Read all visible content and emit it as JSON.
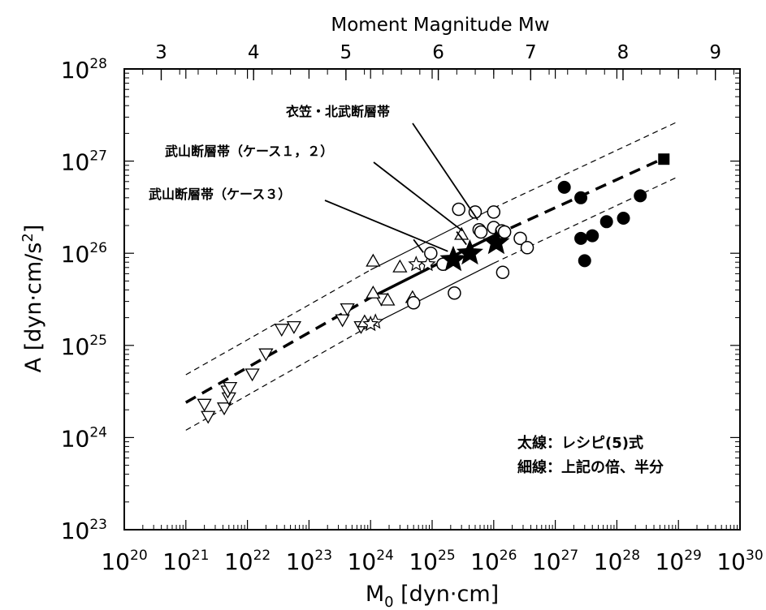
{
  "chart_data": {
    "type": "scatter",
    "x_scale": "log",
    "y_scale": "log",
    "xlim": [
      1e+20,
      1e+30
    ],
    "ylim": [
      1e+23,
      1e+28
    ],
    "xlabel_main": "M",
    "xlabel_sub": "0",
    "xlabel_rest": " [dyn·cm]",
    "ylabel_main": "A [dyn·cm/s",
    "ylabel_sup": "2",
    "ylabel_end": "]",
    "top_axis_label": "Moment Magnitude Mw",
    "x_tick_mantissa": "10",
    "x_tick_exponents": [
      "20",
      "21",
      "22",
      "23",
      "24",
      "25",
      "26",
      "27",
      "28",
      "29",
      "30"
    ],
    "y_tick_mantissa": "10",
    "y_tick_exponents": [
      "23",
      "24",
      "25",
      "26",
      "27",
      "28"
    ],
    "top_ticks": [
      "3",
      "4",
      "5",
      "6",
      "7",
      "8",
      "9"
    ],
    "lines": [
      {
        "style": "thick-dashed",
        "x": [
          1e+21,
          1e+24
        ],
        "y": [
          2.4e+24,
          3.3e+25
        ]
      },
      {
        "style": "thick-solid",
        "x": [
          1e+24,
          1e+26
        ],
        "y": [
          3.3e+25,
          1.55e+26
        ]
      },
      {
        "style": "thick-dashed",
        "x": [
          1e+26,
          5.9e+28
        ],
        "y": [
          1.55e+26,
          1.08e+27
        ]
      },
      {
        "style": "thin-dashed",
        "x": [
          1e+21,
          1e+24
        ],
        "y": [
          4.8e+24,
          6.6e+25
        ]
      },
      {
        "style": "thin-solid",
        "x": [
          1e+24,
          1e+26
        ],
        "y": [
          6.6e+25,
          3.1e+26
        ]
      },
      {
        "style": "thin-dashed",
        "x": [
          1e+26,
          1e+29
        ],
        "y": [
          3.1e+26,
          2.7e+27
        ]
      },
      {
        "style": "thin-dashed",
        "x": [
          1e+21,
          1e+24
        ],
        "y": [
          1.2e+24,
          1.65e+25
        ]
      },
      {
        "style": "thin-solid",
        "x": [
          1e+24,
          1e+26
        ],
        "y": [
          1.65e+25,
          7.8e+25
        ]
      },
      {
        "style": "thin-dashed",
        "x": [
          1e+26,
          1e+29
        ],
        "y": [
          7.8e+25,
          6.8e+26
        ]
      }
    ],
    "series": [
      {
        "marker": "triangle-down-open",
        "points": [
          [
            2e+21,
            2.3e+24
          ],
          [
            2.3e+21,
            1.7e+24
          ],
          [
            4.2e+21,
            2.1e+24
          ],
          [
            5e+21,
            2.7e+24
          ],
          [
            4.8e+21,
            3.2e+24
          ],
          [
            5.2e+21,
            3.5e+24
          ],
          [
            1.2e+22,
            4.9e+24
          ],
          [
            2e+22,
            8.1e+24
          ],
          [
            3.6e+22,
            1.5e+25
          ],
          [
            5.7e+22,
            1.6e+25
          ],
          [
            3.5e+23,
            1.9e+25
          ],
          [
            4.2e+23,
            2.5e+25
          ],
          [
            7e+23,
            1.6e+25
          ],
          [
            1.5e+24,
            3.2e+25
          ]
        ]
      },
      {
        "marker": "triangle-up-open",
        "points": [
          [
            8e+23,
            1.8e+25
          ],
          [
            1.1e+24,
            8.2e+25
          ],
          [
            1.1e+24,
            3.7e+25
          ],
          [
            1.9e+24,
            3.1e+25
          ],
          [
            3e+24,
            7.1e+25
          ],
          [
            4.8e+24,
            3.3e+25
          ],
          [
            3e+25,
            1.6e+26
          ]
        ]
      },
      {
        "marker": "star-open",
        "points": [
          [
            5.5e+24,
            7.6e+25
          ],
          [
            8.5e+24,
            7.6e+25
          ],
          [
            1.2e+24,
            1.8e+25
          ],
          [
            1e+24,
            1.7e+25
          ]
        ]
      },
      {
        "marker": "circle-open",
        "points": [
          [
            9.5e+24,
            1e+26
          ],
          [
            1.5e+25,
            7.6e+25
          ],
          [
            2.7e+25,
            3e+26
          ],
          [
            2.3e+25,
            3.7e+25
          ],
          [
            5e+25,
            2.8e+26
          ],
          [
            5.8e+25,
            1.8e+26
          ],
          [
            6.2e+25,
            1.7e+26
          ],
          [
            1e+26,
            1.9e+26
          ],
          [
            1e+26,
            2.8e+26
          ],
          [
            1.35e+26,
            1.75e+26
          ],
          [
            1.5e+26,
            1.7e+26
          ],
          [
            1.4e+26,
            6.2e+25
          ],
          [
            2.7e+26,
            1.45e+26
          ],
          [
            3.5e+26,
            1.15e+26
          ],
          [
            5e+24,
            2.9e+25
          ]
        ]
      },
      {
        "marker": "circle-filled",
        "points": [
          [
            1.4e+27,
            5.2e+26
          ],
          [
            2.6e+27,
            4e+26
          ],
          [
            2.6e+27,
            1.45e+26
          ],
          [
            3e+27,
            8.3e+25
          ],
          [
            4e+27,
            1.55e+26
          ],
          [
            6.8e+27,
            2.2e+26
          ],
          [
            1.28e+28,
            2.4e+26
          ],
          [
            2.4e+28,
            4.2e+26
          ]
        ]
      },
      {
        "marker": "square-filled",
        "points": [
          [
            5.8e+28,
            1.05e+27
          ]
        ]
      },
      {
        "marker": "star-filled",
        "points": [
          [
            2.2e+25,
            8.5e+25
          ],
          [
            4.1e+25,
            1e+26
          ],
          [
            1.1e+26,
            1.3e+26
          ]
        ]
      }
    ],
    "annotations": [
      {
        "text": "衣笠・北武断層帯",
        "target_x": 5.5e+25,
        "target_y": 2.3e+26,
        "ticks": [
          [
            3e+25,
            1.4e+26
          ]
        ]
      },
      {
        "text": "武山断層帯（ケース１，２）",
        "target_x": 3.1e+25,
        "target_y": 1.75e+26
      },
      {
        "text": "武山断層帯（ケース３）",
        "target_x": 1.8e+25,
        "target_y": 1.05e+26,
        "ticks": [
          [
            6e+24,
            1.15e+26
          ]
        ]
      }
    ],
    "legend_lines": [
      "太線：レシピ(5)式",
      "細線：上記の倍、半分"
    ]
  }
}
